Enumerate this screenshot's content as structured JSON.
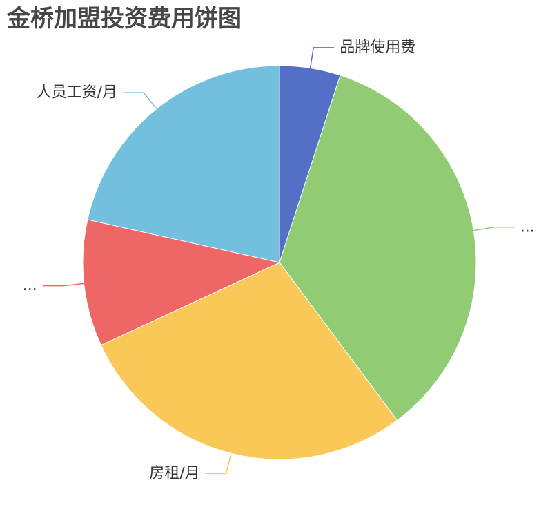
{
  "chart_data": {
    "type": "pie",
    "title": "金桥加盟投资费用饼图",
    "legend": "none",
    "slices": [
      {
        "label": "品牌使用费",
        "value": 5.0,
        "color": "#5470c6"
      },
      {
        "label": "...",
        "value": 34.8,
        "color": "#91cc75"
      },
      {
        "label": "房租/月",
        "value": 28.3,
        "color": "#fac858"
      },
      {
        "label": "...",
        "value": 10.4,
        "color": "#ee6666"
      },
      {
        "label": "人员工资/月",
        "value": 21.5,
        "color": "#73c0de"
      }
    ]
  }
}
